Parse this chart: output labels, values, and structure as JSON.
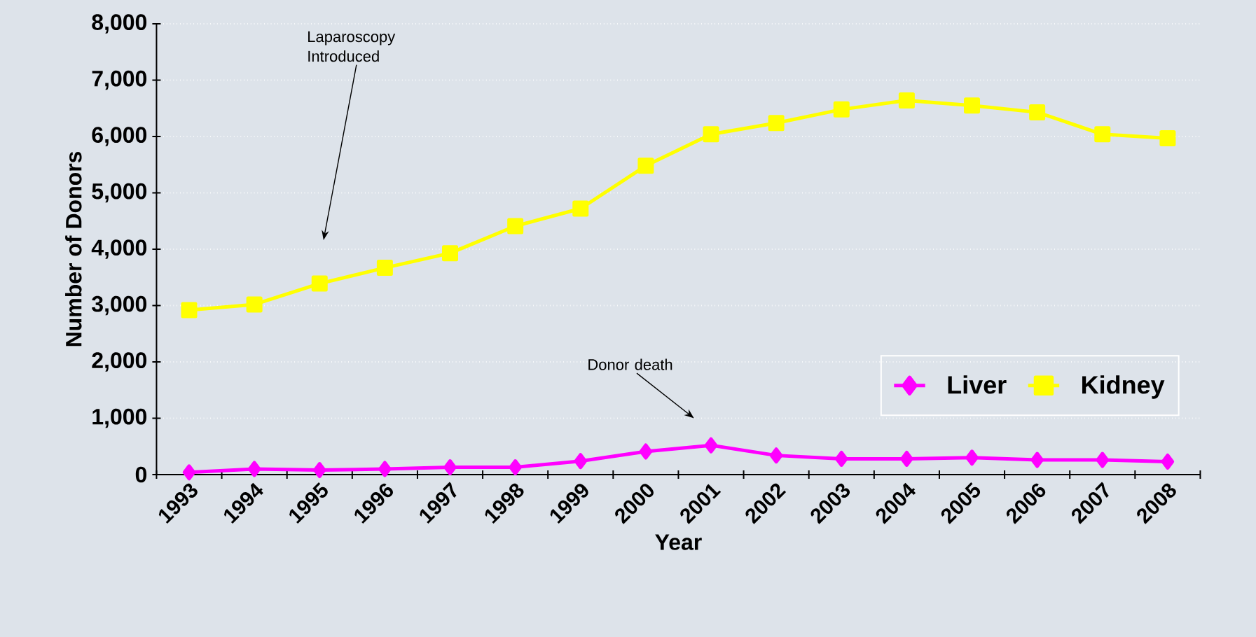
{
  "chart_data": {
    "type": "line",
    "xlabel": "Year",
    "ylabel": "Number of Donors",
    "categories": [
      "1993",
      "1994",
      "1995",
      "1996",
      "1997",
      "1998",
      "1999",
      "2000",
      "2001",
      "2002",
      "2003",
      "2004",
      "2005",
      "2006",
      "2007",
      "2008"
    ],
    "series": [
      {
        "name": "Liver",
        "color": "#ff00ff",
        "marker": "diamond",
        "values": [
          40,
          100,
          80,
          100,
          130,
          130,
          240,
          410,
          520,
          340,
          280,
          280,
          300,
          260,
          260,
          230
        ]
      },
      {
        "name": "Kidney",
        "color": "#ffff00",
        "marker": "square",
        "values": [
          2920,
          3020,
          3390,
          3670,
          3930,
          4410,
          4720,
          5480,
          6040,
          6240,
          6480,
          6640,
          6550,
          6430,
          6040,
          5970
        ]
      }
    ],
    "ylim": [
      0,
      8000
    ],
    "yticks": [
      0,
      {
        "value": 1000,
        "label": "1,000"
      },
      {
        "value": 2000,
        "label": "2,000"
      },
      {
        "value": 3000,
        "label": "3,000"
      },
      {
        "value": 4000,
        "label": "4,000"
      },
      {
        "value": 5000,
        "label": "5,000"
      },
      {
        "value": 6000,
        "label": "6,000"
      },
      {
        "value": 7000,
        "label": "7,000"
      },
      {
        "value": 8000,
        "label": "8,000"
      }
    ],
    "grid": "y",
    "legend": "bottom right",
    "line_style": "solid",
    "annotations": [
      "Laparoscopy Introduced",
      "Donor death"
    ]
  }
}
